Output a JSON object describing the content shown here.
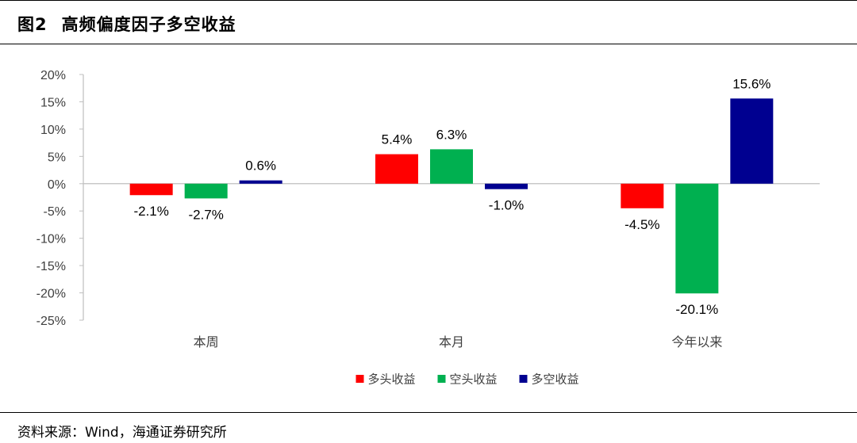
{
  "figure": {
    "number": "图2",
    "title": "高频偏度因子多空收益",
    "source": "资料来源：Wind，海通证券研究所"
  },
  "chart_data": {
    "type": "bar",
    "categories": [
      "本周",
      "本月",
      "今年以来"
    ],
    "series": [
      {
        "name": "多头收益",
        "color": "#ff0000",
        "values": [
          -2.1,
          5.4,
          -4.5
        ]
      },
      {
        "name": "空头收益",
        "color": "#00b050",
        "values": [
          -2.7,
          6.3,
          -20.1
        ]
      },
      {
        "name": "多空收益",
        "color": "#000090",
        "values": [
          0.6,
          -1.0,
          15.6
        ]
      }
    ],
    "ylim": [
      -25,
      20
    ],
    "yticks": [
      20,
      15,
      10,
      5,
      0,
      -5,
      -10,
      -15,
      -20,
      -25
    ],
    "value_unit": "%",
    "value_decimals": 1,
    "legend_position": "bottom",
    "grid": false
  }
}
